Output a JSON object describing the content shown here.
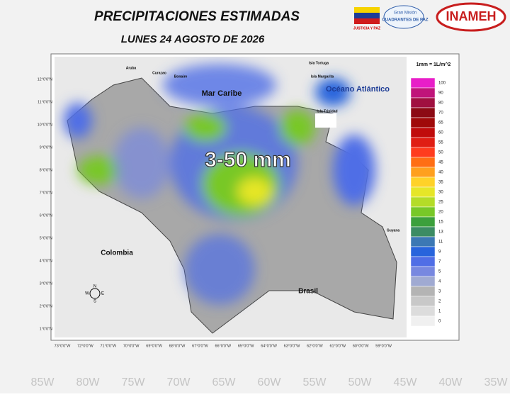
{
  "header": {
    "title": "PRECIPITACIONES  ESTIMADAS",
    "subtitle": "LUNES 24 AGOSTO DE 2026",
    "logos": [
      "JUSTICIA Y PAZ",
      "Gran Misión",
      "CUADRANTES DE PAZ",
      "INAMEH"
    ]
  },
  "map": {
    "label_main": "3-50 mm",
    "places": [
      "Mar Caribe",
      "Océano Atlántico",
      "Colombia",
      "Brasil",
      "Guyana",
      "Aruba",
      "Curazao",
      "Bonaire",
      "Isla Tortuga",
      "Isla Margarita",
      "Isla Trinidad"
    ],
    "lat_labels": [
      "12°0'0\"N",
      "11°0'0\"N",
      "10°0'0\"N",
      "9°0'0\"N",
      "8°0'0\"N",
      "7°0'0\"N",
      "6°0'0\"N",
      "5°0'0\"N",
      "4°0'0\"N",
      "3°0'0\"N",
      "2°0'0\"N",
      "1°0'0\"N"
    ],
    "lon_labels": [
      "73°0'0\"W",
      "72°0'0\"W",
      "71°0'0\"W",
      "70°0'0\"W",
      "69°0'0\"W",
      "68°0'0\"W",
      "67°0'0\"W",
      "66°0'0\"W",
      "65°0'0\"W",
      "64°0'0\"W",
      "63°0'0\"W",
      "62°0'0\"W",
      "61°0'0\"W",
      "60°0'0\"W",
      "59°0'0\"W"
    ],
    "compass": [
      "N",
      "S",
      "W",
      "E"
    ],
    "background_lon": [
      "85W",
      "80W",
      "75W",
      "70W",
      "65W",
      "60W",
      "55W",
      "50W",
      "45W",
      "40W",
      "35W"
    ]
  },
  "legend": {
    "title": "1mm = 1L/m^2",
    "levels": [
      100,
      90,
      80,
      70,
      65,
      60,
      55,
      50,
      45,
      40,
      35,
      30,
      25,
      20,
      15,
      13,
      11,
      9,
      7,
      5,
      4,
      3,
      2,
      1,
      0
    ],
    "colors": [
      "#e81ec8",
      "#c0147a",
      "#a01040",
      "#8c0a14",
      "#a00a0a",
      "#c00c0c",
      "#e01e14",
      "#ff3c1e",
      "#ff6e14",
      "#ffa01e",
      "#ffd228",
      "#e6e628",
      "#b4dc28",
      "#78c828",
      "#3ca03c",
      "#3c8c64",
      "#3c78b4",
      "#2864dc",
      "#506ee6",
      "#7888e0",
      "#a0aad2",
      "#b4b4b4",
      "#c8c8c8",
      "#dcdcdc",
      "#f0f0f0"
    ]
  }
}
